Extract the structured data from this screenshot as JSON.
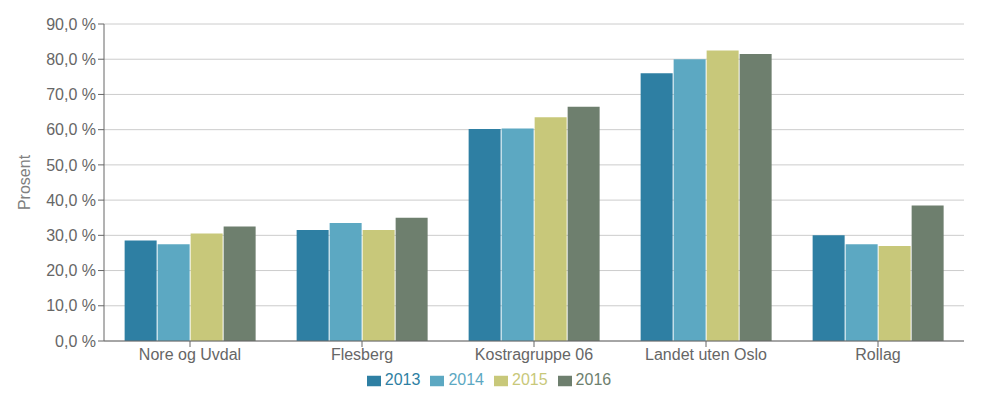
{
  "chart_data": {
    "type": "bar",
    "categories": [
      "Nore og Uvdal",
      "Flesberg",
      "Kostragruppe 06",
      "Landet uten Oslo",
      "Rollag"
    ],
    "series": [
      {
        "name": "2013",
        "color": "#2e7fa3",
        "values": [
          28.5,
          31.5,
          60.2,
          76.0,
          30.0
        ]
      },
      {
        "name": "2014",
        "color": "#5ca8c2",
        "values": [
          27.5,
          33.5,
          60.3,
          80.0,
          27.5
        ]
      },
      {
        "name": "2015",
        "color": "#c8c87a",
        "values": [
          30.5,
          31.5,
          63.5,
          82.5,
          27.0
        ]
      },
      {
        "name": "2016",
        "color": "#6e7f6e",
        "values": [
          32.5,
          35.0,
          66.5,
          81.5,
          38.5
        ]
      }
    ],
    "ylabel": "Prosent",
    "ylim": [
      0,
      90
    ],
    "yticks": [
      {
        "value": 0,
        "label": "0,0 %"
      },
      {
        "value": 10,
        "label": "10,0 %"
      },
      {
        "value": 20,
        "label": "20,0 %"
      },
      {
        "value": 30,
        "label": "30,0 %"
      },
      {
        "value": 40,
        "label": "40,0 %"
      },
      {
        "value": 50,
        "label": "50,0 %"
      },
      {
        "value": 60,
        "label": "60,0 %"
      },
      {
        "value": 70,
        "label": "70,0 %"
      },
      {
        "value": 80,
        "label": "80,0 %"
      },
      {
        "value": 90,
        "label": "90,0 %"
      }
    ],
    "grid": true,
    "legend": "bottom"
  }
}
